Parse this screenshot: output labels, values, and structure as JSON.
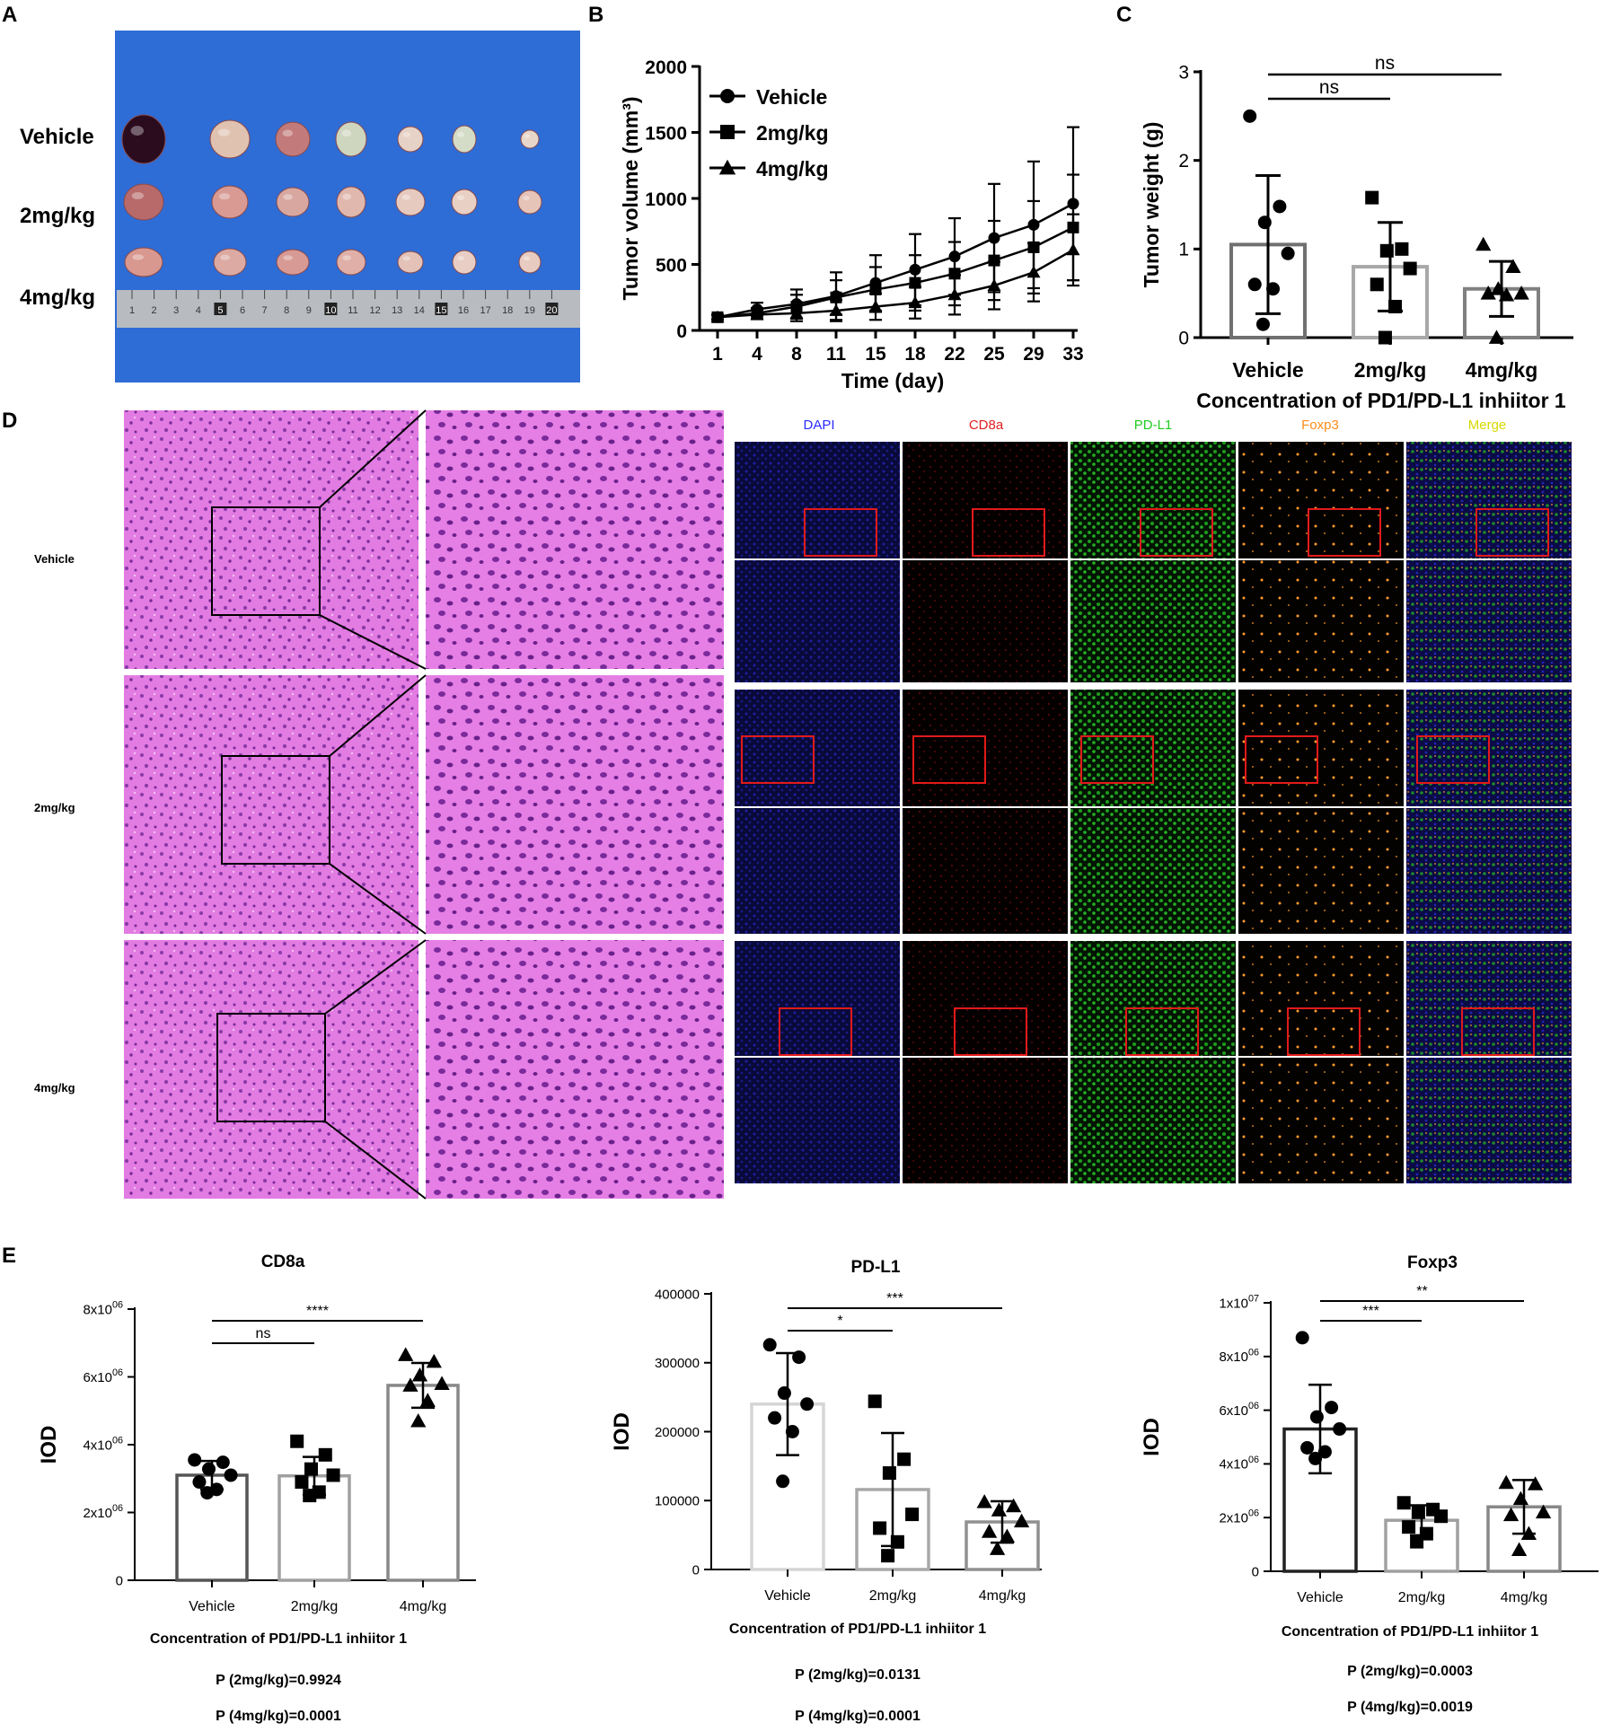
{
  "panel_letters": [
    "A",
    "B",
    "C",
    "D",
    "E"
  ],
  "panel_a": {
    "row_labels": [
      "Vehicle",
      "2mg/kg",
      "4mg/kg"
    ],
    "ruler_numbers": [
      "1",
      "2",
      "3",
      "4",
      "5",
      "6",
      "7",
      "8",
      "9",
      "10",
      "11",
      "12",
      "13",
      "14",
      "15",
      "16",
      "17",
      "18",
      "19",
      "20"
    ],
    "colors": {
      "background": "#2e6cd6",
      "ruler": "#b8bcc0"
    }
  },
  "panel_d": {
    "row_labels": [
      "Vehicle",
      "2mg/kg",
      "4mg/kg"
    ],
    "channel_labels": [
      {
        "text": "DAPI",
        "color": "#2a2aff"
      },
      {
        "text": "CD8a",
        "color": "#e02020"
      },
      {
        "text": "PD-L1",
        "color": "#22cc22"
      },
      {
        "text": "Foxp3",
        "color": "#ff8c1a"
      },
      {
        "text": "Merge",
        "color": "#e6e600"
      }
    ],
    "colors": {
      "he_tissue": "#e070e0",
      "he_nuclei": "#7a2a9a",
      "dapi": "#1a1a9a",
      "cd8a": "#8a1010",
      "pdl1": "#22a022",
      "foxp3": "#ff9a30"
    }
  },
  "chart_data": [
    {
      "id": "B",
      "type": "line",
      "xlabel": "Time (day)",
      "ylabel": "Tumor volume (mm³)",
      "x": [
        1,
        4,
        8,
        11,
        15,
        18,
        22,
        25,
        29,
        33
      ],
      "ylim": [
        0,
        2000
      ],
      "yticks": [
        0,
        500,
        1000,
        1500,
        2000
      ],
      "legend_position": "top-left",
      "series": [
        {
          "name": "Vehicle",
          "marker": "circle",
          "values": [
            100,
            160,
            200,
            260,
            360,
            460,
            560,
            700,
            800,
            960
          ],
          "errors": [
            20,
            50,
            110,
            180,
            210,
            270,
            290,
            410,
            480,
            580
          ]
        },
        {
          "name": "2mg/kg",
          "marker": "square",
          "values": [
            100,
            130,
            180,
            250,
            310,
            360,
            430,
            530,
            630,
            780
          ],
          "errors": [
            15,
            40,
            90,
            130,
            170,
            210,
            240,
            300,
            350,
            400
          ]
        },
        {
          "name": "4mg/kg",
          "marker": "triangle",
          "values": [
            100,
            120,
            130,
            150,
            180,
            210,
            270,
            340,
            440,
            610
          ],
          "errors": [
            15,
            35,
            60,
            80,
            100,
            120,
            150,
            180,
            220,
            270
          ]
        }
      ]
    },
    {
      "id": "C",
      "type": "bar",
      "categories": [
        "Vehicle",
        "2mg/kg",
        "4mg/kg"
      ],
      "values": [
        1.05,
        0.8,
        0.55
      ],
      "errors": [
        0.78,
        0.5,
        0.31
      ],
      "points": [
        [
          2.5,
          1.48,
          1.3,
          0.95,
          0.6,
          0.55,
          0.15
        ],
        [
          1.58,
          1.0,
          0.98,
          0.78,
          0.6,
          0.35,
          0.0
        ],
        [
          1.05,
          0.8,
          0.55,
          0.5,
          0.5,
          0.48,
          0.0
        ]
      ],
      "markers": [
        "circle",
        "square",
        "triangle"
      ],
      "bar_colors": [
        "#707070",
        "#a8a8a8",
        "#808080"
      ],
      "ylabel": "Tumor weight (g)",
      "xlabel": "Concentration of PD1/PD-L1 inhiitor 1",
      "ylim": [
        0,
        3
      ],
      "yticks": [
        "0",
        "1",
        "2",
        "3"
      ],
      "brackets": [
        {
          "from": 0,
          "to": 1,
          "label": "ns"
        },
        {
          "from": 0,
          "to": 2,
          "label": "ns"
        }
      ]
    },
    {
      "id": "E1",
      "type": "bar",
      "title": "CD8a",
      "categories": [
        "Vehicle",
        "2mg/kg",
        "4mg/kg"
      ],
      "values": [
        3100000,
        3080000,
        5750000
      ],
      "errors": [
        420000,
        560000,
        660000
      ],
      "points": [
        [
          3550000,
          3480000,
          3280000,
          3100000,
          2900000,
          2680000,
          2580000
        ],
        [
          4100000,
          3700000,
          3280000,
          3100000,
          2900000,
          2600000,
          2500000
        ],
        [
          6650000,
          6450000,
          6050000,
          5800000,
          5750000,
          5300000,
          4700000
        ]
      ],
      "markers": [
        "circle",
        "square",
        "triangle"
      ],
      "bar_colors": [
        "#555555",
        "#a0a0a0",
        "#888888"
      ],
      "ylabel": "IOD",
      "xlabel": "Concentration of PD1/PD-L1 inhiitor 1",
      "ylim": [
        0,
        8000000
      ],
      "yticks": [
        {
          "value": 0,
          "label": "0"
        },
        {
          "value": 2000000,
          "label": "2x10",
          "exp": "06"
        },
        {
          "value": 4000000,
          "label": "4x10",
          "exp": "06"
        },
        {
          "value": 6000000,
          "label": "6x10",
          "exp": "06"
        },
        {
          "value": 8000000,
          "label": "8x10",
          "exp": "06"
        }
      ],
      "brackets": [
        {
          "from": 0,
          "to": 1,
          "label": "ns"
        },
        {
          "from": 0,
          "to": 2,
          "label": "****"
        }
      ],
      "pvalues": [
        "P (2mg/kg)=0.9924",
        "P (4mg/kg)=0.0001"
      ]
    },
    {
      "id": "E2",
      "type": "bar",
      "title": "PD-L1",
      "categories": [
        "Vehicle",
        "2mg/kg",
        "4mg/kg"
      ],
      "values": [
        240000,
        116000,
        69000
      ],
      "errors": [
        74000,
        82000,
        30000
      ],
      "points": [
        [
          326000,
          308000,
          256000,
          240000,
          220000,
          200000,
          128000
        ],
        [
          244000,
          160000,
          140000,
          80000,
          60000,
          40000,
          20000
        ],
        [
          98000,
          92000,
          86000,
          70000,
          55000,
          48000,
          30000
        ]
      ],
      "markers": [
        "circle",
        "square",
        "triangle"
      ],
      "bar_colors": [
        "#d5d5d5",
        "#a8a8a8",
        "#909090"
      ],
      "ylabel": "IOD",
      "xlabel": "Concentration of PD1/PD-L1 inhiitor 1",
      "ylim": [
        0,
        400000
      ],
      "yticks": [
        {
          "value": 0,
          "label": "0"
        },
        {
          "value": 100000,
          "label": "100000"
        },
        {
          "value": 200000,
          "label": "200000"
        },
        {
          "value": 300000,
          "label": "300000"
        },
        {
          "value": 400000,
          "label": "400000"
        }
      ],
      "brackets": [
        {
          "from": 0,
          "to": 1,
          "label": "*"
        },
        {
          "from": 0,
          "to": 2,
          "label": "***"
        }
      ],
      "pvalues": [
        "P (2mg/kg)=0.0131",
        "P (4mg/kg)=0.0001"
      ]
    },
    {
      "id": "E3",
      "type": "bar",
      "title": "Foxp3",
      "categories": [
        "Vehicle",
        "2mg/kg",
        "4mg/kg"
      ],
      "values": [
        5300000,
        1900000,
        2400000
      ],
      "errors": [
        1650000,
        560000,
        1000000
      ],
      "points": [
        [
          8700000,
          6100000,
          5750000,
          5300000,
          4600000,
          4450000,
          4200000
        ],
        [
          2550000,
          2300000,
          2200000,
          2050000,
          1650000,
          1400000,
          1100000
        ],
        [
          3300000,
          3250000,
          2700000,
          2200000,
          2100000,
          1400000,
          800000
        ]
      ],
      "markers": [
        "circle",
        "square",
        "triangle"
      ],
      "bar_colors": [
        "#222222",
        "#a0a0a0",
        "#888888"
      ],
      "ylabel": "IOD",
      "xlabel": "Concentration of PD1/PD-L1 inhiitor 1",
      "ylim": [
        0,
        10000000
      ],
      "yticks": [
        {
          "value": 0,
          "label": "0"
        },
        {
          "value": 2000000,
          "label": "2x10",
          "exp": "06"
        },
        {
          "value": 4000000,
          "label": "4x10",
          "exp": "06"
        },
        {
          "value": 6000000,
          "label": "6x10",
          "exp": "06"
        },
        {
          "value": 8000000,
          "label": "8x10",
          "exp": "06"
        },
        {
          "value": 10000000,
          "label": "1x10",
          "exp": "07"
        }
      ],
      "brackets": [
        {
          "from": 0,
          "to": 1,
          "label": "***"
        },
        {
          "from": 0,
          "to": 2,
          "label": "**"
        }
      ],
      "pvalues": [
        "P (2mg/kg)=0.0003",
        "P (4mg/kg)=0.0019"
      ]
    }
  ]
}
